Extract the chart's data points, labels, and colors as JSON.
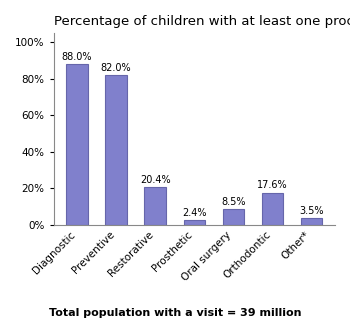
{
  "title": "Percentage of children with at least one procedure",
  "categories": [
    "Diagnostic",
    "Preventive",
    "Restorative",
    "Prosthetic",
    "Oral surgery",
    "Orthodontic",
    "Other*"
  ],
  "values": [
    88.0,
    82.0,
    20.4,
    2.4,
    8.5,
    17.6,
    3.5
  ],
  "bar_color": "#8080cc",
  "bar_edgecolor": "#6666aa",
  "ylim": [
    0,
    105
  ],
  "yticks": [
    0,
    20,
    40,
    60,
    80,
    100
  ],
  "footnote": "Total population with a visit = 39 million",
  "title_fontsize": 9.5,
  "label_fontsize": 7.0,
  "tick_fontsize": 7.5,
  "footnote_fontsize": 8.0
}
